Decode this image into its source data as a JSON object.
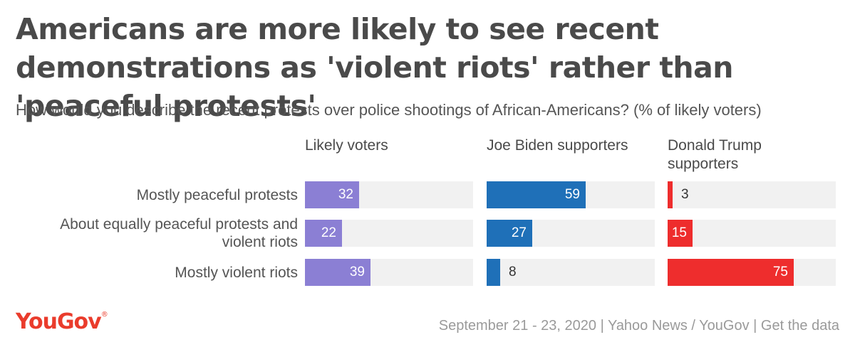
{
  "header": {
    "title": "Americans are more likely to see recent demonstrations as 'violent riots' rather than 'peaceful protests'",
    "subtitle": "How would you describe the recent protests over police shootings of African-Americans? (% of likely voters)"
  },
  "footer": {
    "logo": "YouGov",
    "source": "September 21 - 23, 2020 | Yahoo News / YouGov | Get the data"
  },
  "chart_data": {
    "type": "bar",
    "orientation": "horizontal",
    "categories": [
      "Mostly peaceful protests",
      "About equally peaceful protests and violent riots",
      "Mostly violent riots"
    ],
    "xlim": [
      0,
      100
    ],
    "series": [
      {
        "name": "Likely voters",
        "color": "#8b7fd4",
        "values": [
          32,
          22,
          39
        ]
      },
      {
        "name": "Joe Biden supporters",
        "color": "#1f70b8",
        "values": [
          59,
          27,
          8
        ]
      },
      {
        "name": "Donald Trump supporters",
        "color": "#ee2d2d",
        "values": [
          3,
          15,
          75
        ]
      }
    ],
    "legend": "panel headers"
  }
}
